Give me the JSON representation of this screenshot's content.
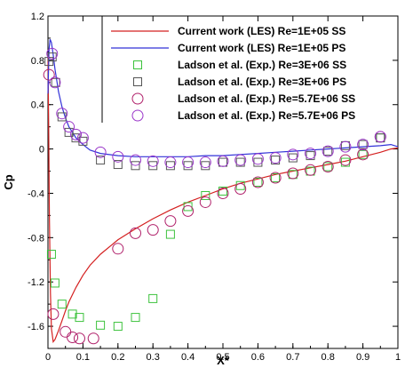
{
  "chart_data": {
    "type": "scatter",
    "title": "",
    "xlabel": "X*",
    "ylabel": "Cp",
    "xlim": [
      0,
      1
    ],
    "ylim": [
      -1.8,
      1.2
    ],
    "y_inverted": true,
    "grid": false,
    "legend_position": "top-right",
    "x_ticks": [
      {
        "value": 0,
        "label": "0"
      },
      {
        "value": 0.1,
        "label": "0.1"
      },
      {
        "value": 0.2,
        "label": "0.2"
      },
      {
        "value": 0.3,
        "label": "0.3"
      },
      {
        "value": 0.4,
        "label": "0.4"
      },
      {
        "value": 0.5,
        "label": "0.5"
      },
      {
        "value": 0.6,
        "label": "0.6"
      },
      {
        "value": 0.7,
        "label": "0.7"
      },
      {
        "value": 0.8,
        "label": "0.8"
      },
      {
        "value": 0.9,
        "label": "0.9"
      },
      {
        "value": 1,
        "label": "1"
      }
    ],
    "y_ticks": [
      {
        "value": 1.2,
        "label": "1.2"
      },
      {
        "value": 0.8,
        "label": "0.8"
      },
      {
        "value": 0.4,
        "label": "0.4"
      },
      {
        "value": 0,
        "label": "0"
      },
      {
        "value": -0.4,
        "label": "-0.4"
      },
      {
        "value": -0.8,
        "label": "-0.8"
      },
      {
        "value": -1.2,
        "label": "-1.2"
      },
      {
        "value": -1.6,
        "label": "-1.6"
      }
    ],
    "series": [
      {
        "name": "Current work (LES) Re=1E+05 SS",
        "kind": "line",
        "color": "#d42020",
        "x": [
          0,
          0.002,
          0.004,
          0.007,
          0.01,
          0.015,
          0.02,
          0.03,
          0.04,
          0.05,
          0.06,
          0.08,
          0.1,
          0.12,
          0.15,
          0.2,
          0.25,
          0.3,
          0.35,
          0.4,
          0.45,
          0.5,
          0.55,
          0.6,
          0.65,
          0.7,
          0.75,
          0.8,
          0.85,
          0.9,
          0.95,
          0.98,
          1.0
        ],
        "y": [
          0.85,
          0.2,
          -0.6,
          -1.3,
          -1.62,
          -1.74,
          -1.72,
          -1.64,
          -1.55,
          -1.46,
          -1.38,
          -1.25,
          -1.14,
          -1.05,
          -0.95,
          -0.82,
          -0.72,
          -0.63,
          -0.55,
          -0.48,
          -0.42,
          -0.36,
          -0.31,
          -0.27,
          -0.23,
          -0.2,
          -0.17,
          -0.14,
          -0.11,
          -0.07,
          -0.03,
          0.0,
          0.01
        ]
      },
      {
        "name": "Current work (LES) Re=1E+05 PS",
        "kind": "line",
        "color": "#3232d8",
        "x": [
          0,
          0.003,
          0.006,
          0.01,
          0.015,
          0.02,
          0.025,
          0.03,
          0.04,
          0.05,
          0.06,
          0.07,
          0.08,
          0.1,
          0.12,
          0.15,
          0.2,
          0.25,
          0.3,
          0.35,
          0.4,
          0.45,
          0.5,
          0.55,
          0.6,
          0.65,
          0.7,
          0.75,
          0.8,
          0.85,
          0.9,
          0.95,
          0.98,
          1.0
        ],
        "y": [
          0.5,
          0.9,
          0.99,
          0.96,
          0.85,
          0.72,
          0.62,
          0.52,
          0.38,
          0.28,
          0.2,
          0.15,
          0.1,
          0.04,
          -0.01,
          -0.04,
          -0.06,
          -0.07,
          -0.07,
          -0.07,
          -0.07,
          -0.06,
          -0.06,
          -0.05,
          -0.04,
          -0.03,
          -0.02,
          -0.01,
          0.0,
          0.01,
          0.02,
          0.03,
          0.04,
          0.02
        ]
      },
      {
        "name": "Ladson et al. (Exp.) Re=3E+06 SS",
        "kind": "square",
        "color": "#3cc23c",
        "x": [
          0.01,
          0.02,
          0.04,
          0.07,
          0.09,
          0.15,
          0.2,
          0.25,
          0.3,
          0.35,
          0.4,
          0.45,
          0.5,
          0.55,
          0.6,
          0.65,
          0.7,
          0.75,
          0.8,
          0.85,
          0.9,
          0.95
        ],
        "y": [
          -0.95,
          -1.21,
          -1.4,
          -1.49,
          -1.52,
          -1.59,
          -1.6,
          -1.52,
          -1.35,
          -0.77,
          -0.52,
          -0.42,
          -0.38,
          -0.33,
          -0.3,
          -0.26,
          -0.23,
          -0.2,
          -0.16,
          -0.12,
          -0.05,
          0.1
        ]
      },
      {
        "name": "Ladson et al. (Exp.) Re=3E+06 PS",
        "kind": "square",
        "color": "#555555",
        "x": [
          0.003,
          0.012,
          0.022,
          0.04,
          0.06,
          0.08,
          0.1,
          0.15,
          0.2,
          0.25,
          0.3,
          0.35,
          0.4,
          0.45,
          0.5,
          0.55,
          0.6,
          0.65,
          0.7,
          0.75,
          0.8,
          0.85,
          0.9,
          0.95
        ],
        "y": [
          0.79,
          0.83,
          0.6,
          0.29,
          0.15,
          0.1,
          0.07,
          -0.1,
          -0.14,
          -0.15,
          -0.15,
          -0.15,
          -0.15,
          -0.15,
          -0.12,
          -0.12,
          -0.12,
          -0.1,
          -0.08,
          -0.06,
          -0.02,
          0.03,
          0.04,
          0.1
        ]
      },
      {
        "name": "Ladson et al. (Exp.) Re=5.7E+06 SS",
        "kind": "circle",
        "color": "#b0206a",
        "x": [
          0.003,
          0.015,
          0.05,
          0.07,
          0.09,
          0.13,
          0.2,
          0.25,
          0.3,
          0.35,
          0.4,
          0.45,
          0.5,
          0.55,
          0.6,
          0.65,
          0.7,
          0.75,
          0.8,
          0.85,
          0.9,
          0.95
        ],
        "y": [
          0.67,
          -1.49,
          -1.65,
          -1.7,
          -1.71,
          -1.71,
          -0.9,
          -0.76,
          -0.73,
          -0.65,
          -0.56,
          -0.48,
          -0.4,
          -0.36,
          -0.3,
          -0.26,
          -0.22,
          -0.19,
          -0.16,
          -0.1,
          -0.05,
          0.11
        ]
      },
      {
        "name": "Ladson et al. (Exp.) Re=5.7E+06 PS",
        "kind": "circle",
        "color": "#9a36c9",
        "x": [
          0.012,
          0.02,
          0.04,
          0.06,
          0.08,
          0.1,
          0.15,
          0.2,
          0.25,
          0.3,
          0.35,
          0.4,
          0.45,
          0.5,
          0.55,
          0.6,
          0.65,
          0.7,
          0.75,
          0.8,
          0.85,
          0.9,
          0.95
        ],
        "y": [
          0.86,
          0.6,
          0.32,
          0.2,
          0.13,
          0.1,
          -0.03,
          -0.07,
          -0.1,
          -0.11,
          -0.12,
          -0.12,
          -0.12,
          -0.11,
          -0.1,
          -0.09,
          -0.08,
          -0.05,
          -0.04,
          -0.02,
          0.02,
          0.04,
          0.11
        ]
      }
    ]
  }
}
